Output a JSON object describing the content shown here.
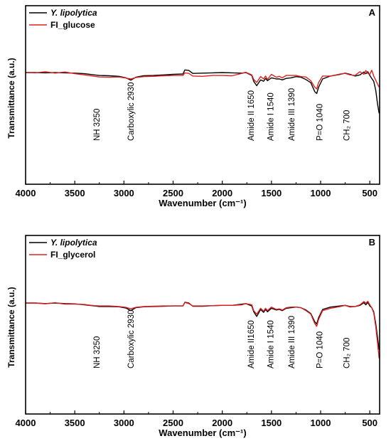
{
  "chart_data": [
    {
      "type": "line",
      "panel_letter": "A",
      "xlabel": "Wavenumber (cm⁻¹)",
      "ylabel": "Transmittance (a.u.)",
      "xlim": [
        4000,
        400
      ],
      "x_ticks": [
        4000,
        3500,
        3000,
        2500,
        2000,
        1500,
        1000,
        500
      ],
      "legend_position": "top-left",
      "series": [
        {
          "name": "Y. lipolytica",
          "color": "#000000",
          "x": [
            4000,
            3900,
            3800,
            3700,
            3600,
            3500,
            3400,
            3300,
            3250,
            3150,
            3050,
            2980,
            2930,
            2880,
            2800,
            2700,
            2600,
            2500,
            2400,
            2380,
            2340,
            2300,
            2200,
            2100,
            2000,
            1900,
            1800,
            1760,
            1700,
            1680,
            1650,
            1610,
            1580,
            1560,
            1540,
            1500,
            1450,
            1420,
            1390,
            1350,
            1300,
            1250,
            1200,
            1150,
            1100,
            1060,
            1040,
            1020,
            980,
            900,
            800,
            750,
            700,
            650,
            600,
            560,
            540,
            520,
            500,
            480,
            460,
            440,
            420,
            405
          ],
          "y": [
            0,
            0,
            -0.1,
            0,
            -0.1,
            -0.2,
            -0.4,
            -0.8,
            -1.0,
            -1.1,
            -1.3,
            -1.8,
            -2.6,
            -1.6,
            -1.1,
            -1.0,
            -0.8,
            -0.6,
            -0.5,
            0.9,
            0.7,
            -0.3,
            -0.2,
            -0.1,
            0,
            -0.1,
            -0.2,
            0,
            -1,
            -3,
            -4.5,
            -2.5,
            -3,
            -2,
            -2.8,
            -1.8,
            -2.2,
            -2.2,
            -2.5,
            -2,
            -1.8,
            -1.4,
            -1.6,
            -2.4,
            -3.5,
            -6.5,
            -7.2,
            -5,
            -2.2,
            -1.2,
            -0.6,
            -0.2,
            -0.6,
            -1.2,
            -0.8,
            0.2,
            -0.4,
            0.3,
            -1,
            -2,
            -3,
            -6,
            -11,
            -14
          ]
        },
        {
          "name": "FI_glucose",
          "color": "#e02020",
          "x": [
            4000,
            3900,
            3800,
            3700,
            3600,
            3500,
            3400,
            3300,
            3250,
            3150,
            3050,
            2980,
            2930,
            2880,
            2800,
            2700,
            2600,
            2500,
            2400,
            2380,
            2340,
            2300,
            2200,
            2100,
            2000,
            1900,
            1800,
            1760,
            1700,
            1680,
            1650,
            1610,
            1580,
            1560,
            1540,
            1500,
            1450,
            1420,
            1390,
            1350,
            1300,
            1250,
            1200,
            1150,
            1100,
            1060,
            1040,
            1020,
            980,
            900,
            800,
            750,
            700,
            650,
            600,
            560,
            540,
            520,
            500,
            480,
            460,
            440,
            420,
            405
          ],
          "y": [
            0,
            -0.1,
            0.3,
            -0.2,
            0.2,
            -0.4,
            -0.8,
            -1.3,
            -1.5,
            -1.6,
            -1.5,
            -1.9,
            -2.2,
            -1.7,
            -1.4,
            -1.3,
            -1.1,
            -1.0,
            -1.0,
            -0.1,
            -0.3,
            -1.2,
            -1.3,
            -1.0,
            -1.0,
            -1.1,
            -0.3,
            0.1,
            -0.8,
            -2.4,
            -3.4,
            -1.4,
            -2.2,
            -1.2,
            -2.4,
            -0.6,
            -1.6,
            -1.3,
            -1.8,
            -1.0,
            -1.0,
            -1.0,
            -1.4,
            -1.5,
            -2.8,
            -5,
            -5.6,
            -3.4,
            -1.2,
            -1.2,
            -0.5,
            -0.3,
            -0.8,
            -1.0,
            0.3,
            -0.6,
            0.7,
            -0.3,
            -0.6,
            0.8,
            -1.2,
            -2.6,
            -4,
            -5
          ]
        }
      ],
      "annotations": [
        {
          "text": "NH 3250",
          "x": 3250
        },
        {
          "text": "Carboxylic 2930",
          "x": 2930
        },
        {
          "text": "Amide II 1650",
          "x": 1650
        },
        {
          "text": "Amide I 1540",
          "x": 1540
        },
        {
          "text": "Amide III 1390",
          "x": 1390
        },
        {
          "text": "P=O 1040",
          "x": 1040
        },
        {
          "text": "CH₂ 700",
          "x": 700
        }
      ]
    },
    {
      "type": "line",
      "panel_letter": "B",
      "xlabel": "Wavenumber (cm⁻¹)",
      "ylabel": "Transmittance (a.u.)",
      "xlim": [
        4000,
        400
      ],
      "x_ticks": [
        4000,
        3500,
        3000,
        2500,
        2000,
        1500,
        1000,
        500
      ],
      "legend_position": "top-left",
      "series": [
        {
          "name": "Y. lipolytica",
          "color": "#000000",
          "x": [
            4000,
            3900,
            3800,
            3700,
            3600,
            3500,
            3400,
            3300,
            3250,
            3150,
            3050,
            2980,
            2930,
            2880,
            2800,
            2700,
            2600,
            2500,
            2400,
            2380,
            2340,
            2300,
            2200,
            2100,
            2000,
            1900,
            1800,
            1760,
            1700,
            1680,
            1650,
            1610,
            1580,
            1560,
            1540,
            1500,
            1450,
            1420,
            1390,
            1350,
            1300,
            1250,
            1200,
            1150,
            1100,
            1060,
            1040,
            1020,
            980,
            900,
            800,
            750,
            700,
            650,
            600,
            560,
            540,
            520,
            500,
            480,
            460,
            440,
            420,
            405
          ],
          "y": [
            0,
            0,
            -0.2,
            0,
            -0.2,
            -0.3,
            -0.6,
            -1.0,
            -1.2,
            -1.2,
            -1.3,
            -1.7,
            -2.6,
            -1.6,
            -1.3,
            -1.2,
            -1.1,
            -1.0,
            -1.0,
            0.3,
            0.0,
            -1.1,
            -1.1,
            -0.9,
            -0.8,
            -0.8,
            -0.4,
            -0.2,
            -1,
            -3,
            -4.6,
            -2.2,
            -3.2,
            -2.2,
            -3.0,
            -1.8,
            -2.4,
            -2.2,
            -2.6,
            -1.8,
            -1.6,
            -1.4,
            -1.6,
            -2.4,
            -3.6,
            -6.4,
            -7.2,
            -5,
            -2.2,
            -1.4,
            -1.0,
            -0.8,
            -1.2,
            -1.2,
            -0.8,
            0.1,
            -0.6,
            0.2,
            -1,
            -1.6,
            -3,
            -7,
            -12,
            -16
          ]
        },
        {
          "name": "FI_glycerol",
          "color": "#e02020",
          "x": [
            4000,
            3900,
            3800,
            3700,
            3600,
            3500,
            3400,
            3300,
            3250,
            3150,
            3050,
            2980,
            2930,
            2880,
            2800,
            2700,
            2600,
            2500,
            2400,
            2380,
            2340,
            2300,
            2200,
            2100,
            2000,
            1900,
            1800,
            1760,
            1700,
            1680,
            1650,
            1610,
            1580,
            1560,
            1540,
            1500,
            1450,
            1420,
            1390,
            1350,
            1300,
            1250,
            1200,
            1150,
            1100,
            1060,
            1040,
            1020,
            980,
            900,
            800,
            750,
            700,
            650,
            600,
            560,
            540,
            520,
            500,
            480,
            460,
            440,
            420,
            405
          ],
          "y": [
            0,
            0,
            -0.3,
            0.1,
            -0.4,
            -0.4,
            -0.5,
            -0.9,
            -1.0,
            -1.0,
            -1.2,
            -1.5,
            -2.0,
            -1.5,
            -1.2,
            -1.1,
            -1.0,
            -1.0,
            -1.0,
            0.2,
            -0.2,
            -1.0,
            -1.0,
            -0.9,
            -0.8,
            -0.8,
            -0.6,
            -0.2,
            -0.6,
            -2.6,
            -3.8,
            -1.8,
            -2.8,
            -1.8,
            -2.6,
            -1.4,
            -2.2,
            -2.0,
            -2.4,
            -1.6,
            -1.4,
            -1.4,
            -1.6,
            -2.6,
            -3.8,
            -7,
            -8,
            -5.6,
            -2.6,
            -1.8,
            -1.2,
            -0.8,
            -1.4,
            -1.2,
            -0.6,
            0.5,
            0.0,
            0.6,
            -0.6,
            -1.6,
            -3.4,
            -8,
            -14,
            -19
          ]
        }
      ],
      "annotations": [
        {
          "text": "NH 3250",
          "x": 3250
        },
        {
          "text": "Carboxylic 2930",
          "x": 2930
        },
        {
          "text": "Amide II1650",
          "x": 1650
        },
        {
          "text": "Amide I   1540",
          "x": 1540
        },
        {
          "text": "Amide III  1390",
          "x": 1390
        },
        {
          "text": "P=O 1040",
          "x": 1040
        },
        {
          "text": "CH₂ 700",
          "x": 700
        }
      ]
    }
  ]
}
